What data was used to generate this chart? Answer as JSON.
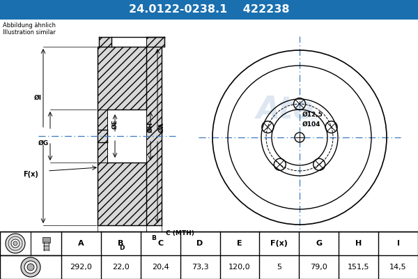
{
  "title_part": "24.0122-0238.1",
  "title_code": "422238",
  "title_bg": "#1a6faf",
  "title_fg": "#ffffff",
  "note_line1": "Abbildung ähnlich",
  "note_line2": "Illustration similar",
  "table_headers": [
    "A",
    "B",
    "C",
    "D",
    "E",
    "F(x)",
    "G",
    "H",
    "I"
  ],
  "table_values": [
    "292,0",
    "22,0",
    "20,4",
    "73,3",
    "120,0",
    "5",
    "79,0",
    "151,5",
    "14,5"
  ],
  "label_dia104": "Ø104",
  "label_dia125": "Ø12,5",
  "bg_color": "#ffffff",
  "line_color": "#000000",
  "table_border": "#000000",
  "crosshair_color": "#3a7abf",
  "watermark_color": "#c8d8e8",
  "dim_label_I": "ØI",
  "dim_label_G": "ØG",
  "dim_label_E": "ØE",
  "dim_label_H": "ØH",
  "dim_label_A": "ØA",
  "dim_label_Fx": "F(x)",
  "dim_label_B": "B",
  "dim_label_C": "C (MTH)",
  "dim_label_D": "D"
}
